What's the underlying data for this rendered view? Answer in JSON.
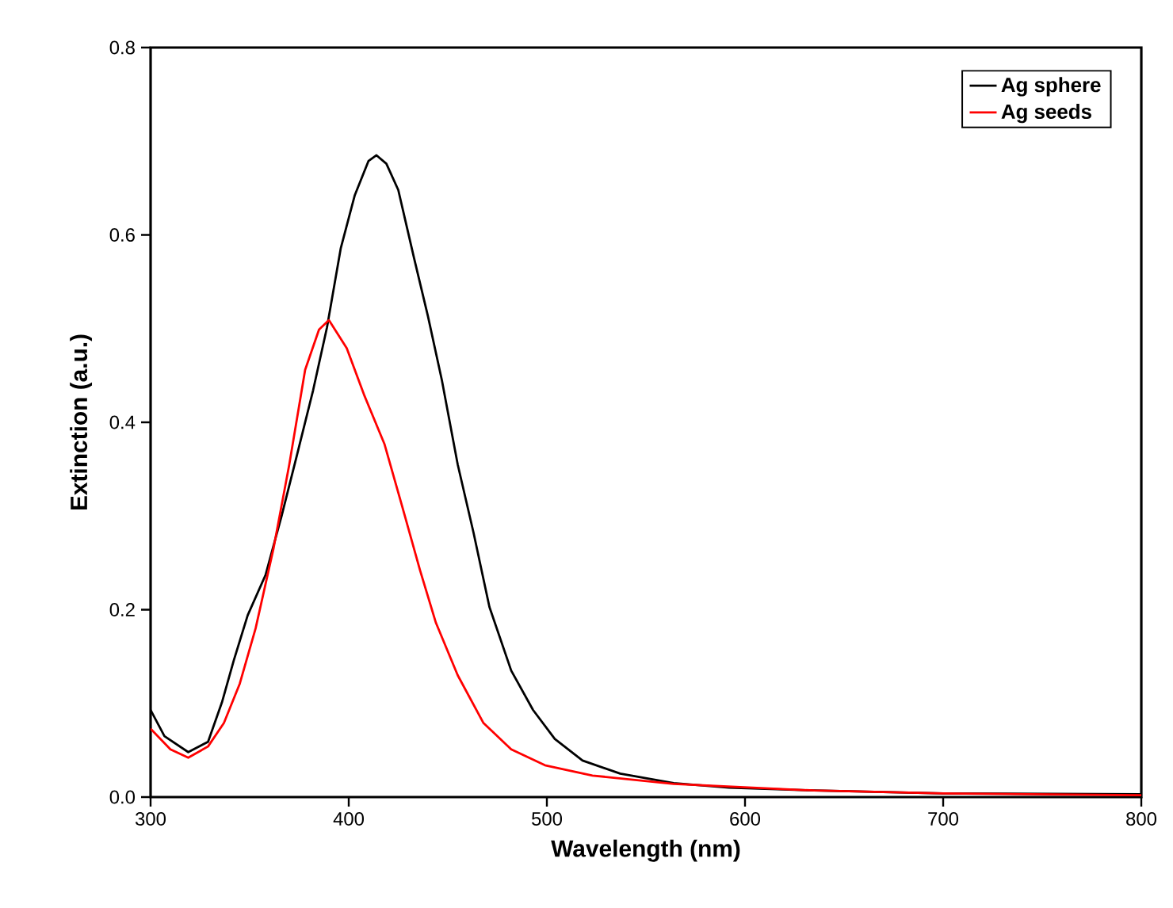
{
  "chart_data": {
    "type": "line",
    "xlabel": "Wavelength (nm)",
    "ylabel": "Extinction (a.u.)",
    "xlim": [
      300,
      800
    ],
    "ylim": [
      0,
      0.8
    ],
    "xticks": [
      300,
      400,
      500,
      600,
      700,
      800
    ],
    "yticks": [
      {
        "value": 0,
        "label": "0.0"
      },
      {
        "value": 0.2,
        "label": "0.2"
      },
      {
        "value": 0.4,
        "label": "0.4"
      },
      {
        "value": 0.6,
        "label": "0.6"
      },
      {
        "value": 0.8,
        "label": "0.8"
      }
    ],
    "legend": "top right",
    "grid": false,
    "marker": "none",
    "line_style": "solid",
    "series": [
      {
        "name": "Ag sphere",
        "color": "#000000",
        "x": [
          300,
          307,
          319,
          329,
          336,
          342,
          349,
          358,
          366,
          374,
          382,
          389,
          396,
          403,
          410,
          414,
          419,
          425,
          433,
          440,
          447,
          455,
          463,
          471,
          482,
          493,
          504,
          518,
          537,
          564,
          592,
          635,
          700,
          800
        ],
        "values": [
          0.093,
          0.065,
          0.048,
          0.059,
          0.101,
          0.146,
          0.194,
          0.237,
          0.299,
          0.366,
          0.434,
          0.501,
          0.586,
          0.642,
          0.679,
          0.685,
          0.676,
          0.648,
          0.575,
          0.513,
          0.445,
          0.355,
          0.282,
          0.203,
          0.135,
          0.093,
          0.062,
          0.039,
          0.025,
          0.015,
          0.01,
          0.007,
          0.004,
          0.003
        ]
      },
      {
        "name": "Ag seeds",
        "color": "#ff0000",
        "x": [
          300,
          310,
          319,
          329,
          337,
          345,
          353,
          362,
          370,
          378,
          385,
          390,
          399,
          408,
          418,
          427,
          436,
          444,
          455,
          468,
          482,
          499,
          523,
          564,
          635,
          700,
          800
        ],
        "values": [
          0.073,
          0.051,
          0.042,
          0.054,
          0.079,
          0.121,
          0.18,
          0.265,
          0.355,
          0.456,
          0.499,
          0.509,
          0.479,
          0.428,
          0.377,
          0.31,
          0.242,
          0.186,
          0.13,
          0.079,
          0.051,
          0.034,
          0.023,
          0.014,
          0.007,
          0.004,
          0.002
        ]
      }
    ]
  }
}
